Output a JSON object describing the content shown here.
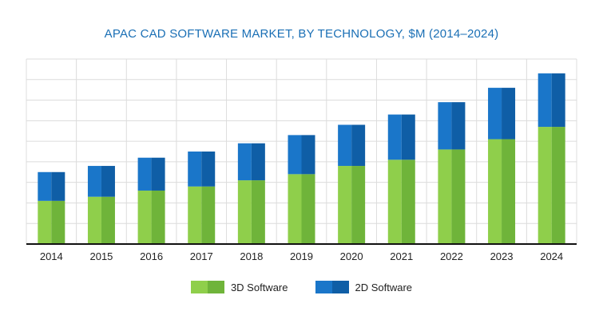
{
  "chart_data": {
    "type": "bar",
    "stacked": true,
    "title": "APAC CAD SOFTWARE MARKET, BY TECHNOLOGY, $M (2014–2024)",
    "categories": [
      "2014",
      "2015",
      "2016",
      "2017",
      "2018",
      "2019",
      "2020",
      "2021",
      "2022",
      "2023",
      "2024"
    ],
    "series": [
      {
        "name": "3D Software",
        "values": [
          2.1,
          2.3,
          2.6,
          2.8,
          3.1,
          3.4,
          3.8,
          4.1,
          4.6,
          5.1,
          5.7
        ],
        "color_light": "#8fcf4b",
        "color_dark": "#6fb43a"
      },
      {
        "name": "2D Software",
        "values": [
          1.4,
          1.5,
          1.6,
          1.7,
          1.8,
          1.9,
          2.0,
          2.2,
          2.3,
          2.5,
          2.6
        ],
        "color_light": "#1a76c9",
        "color_dark": "#0f5ea6"
      }
    ],
    "ylim": [
      0,
      9
    ],
    "grid": true,
    "legend_position": "bottom"
  }
}
